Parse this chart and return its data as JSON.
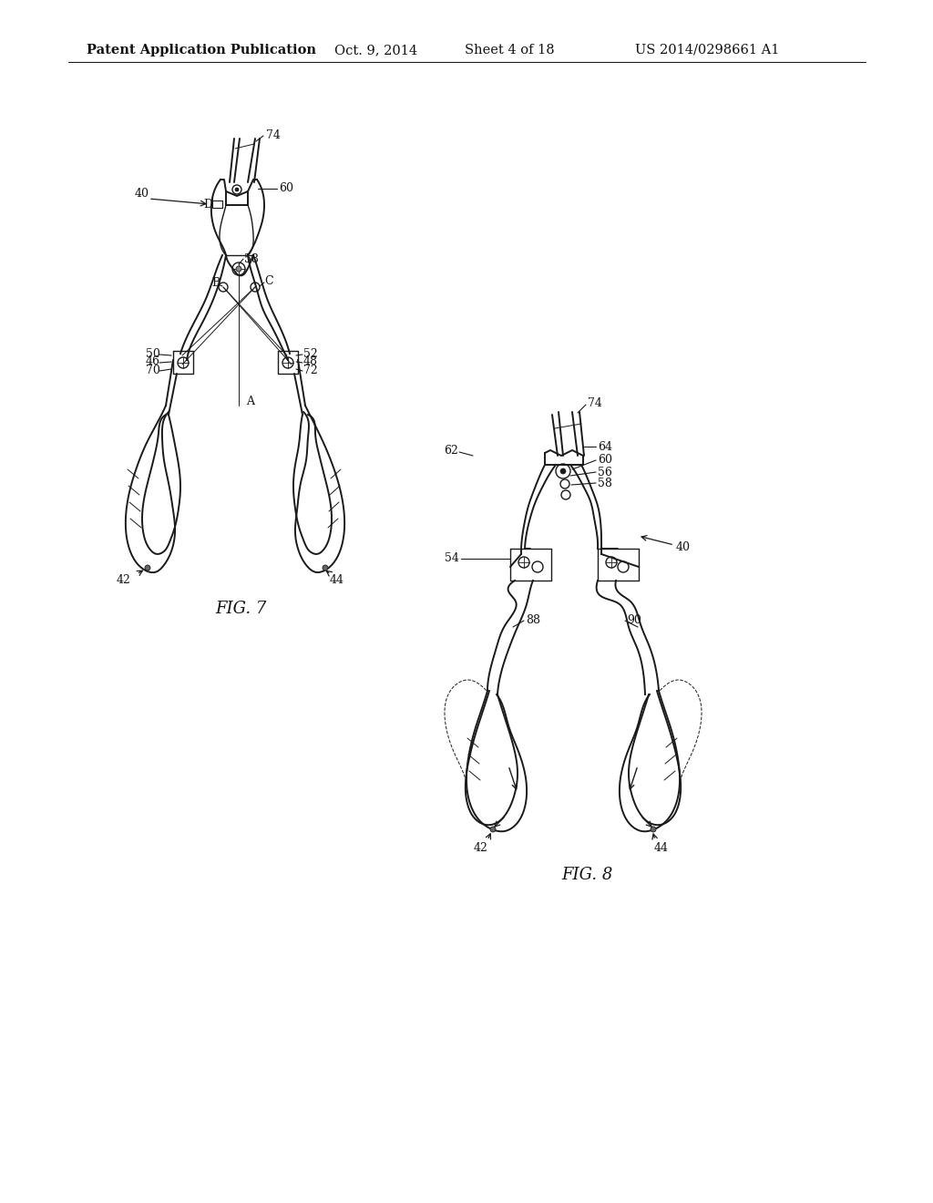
{
  "bg_color": "#ffffff",
  "header_text": "Patent Application Publication",
  "header_date": "Oct. 9, 2014",
  "header_sheet": "Sheet 4 of 18",
  "header_patent": "US 2014/0298661 A1",
  "fig7_label": "FIG. 7",
  "fig8_label": "FIG. 8",
  "line_color": "#1a1a1a",
  "text_color": "#111111",
  "font_size_header": 10.5,
  "font_size_fig": 12
}
